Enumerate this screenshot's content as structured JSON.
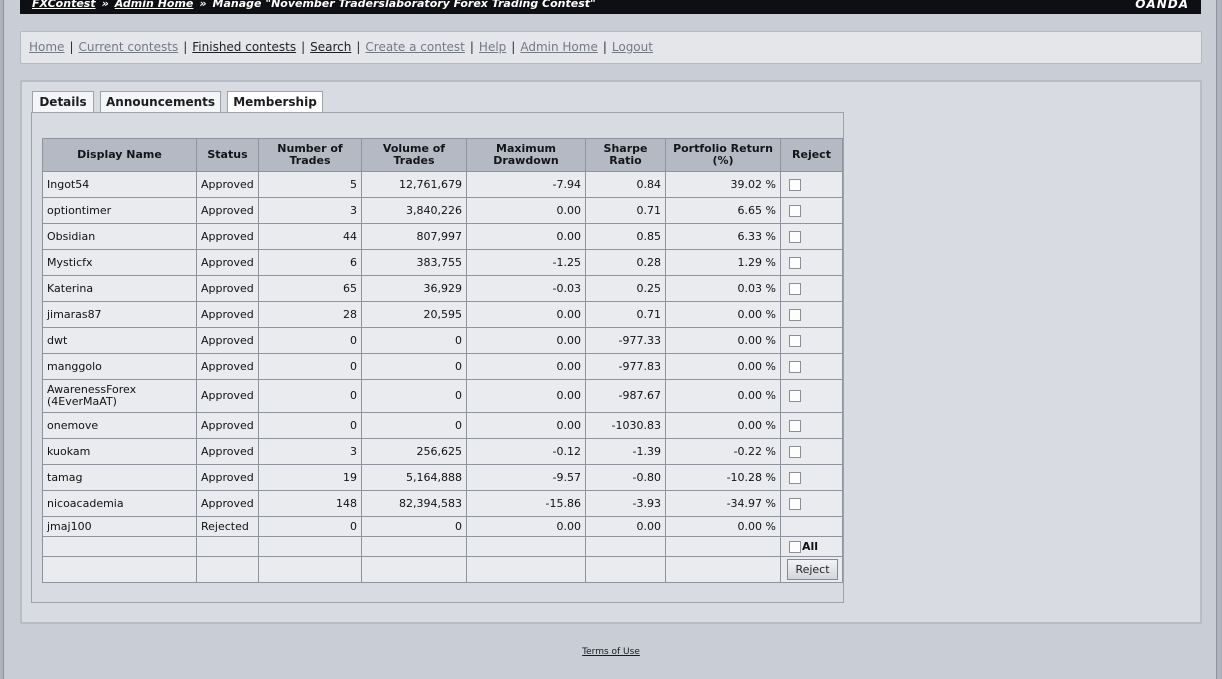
{
  "header": {
    "crumbs": [
      "FXContest",
      "Admin Home"
    ],
    "sep": "»",
    "page_title": "Manage \"November Traderslaboratory Forex Trading Contest\"",
    "brand": "OANDA"
  },
  "nav": {
    "items": [
      "Home",
      "Current contests",
      "Finished contests",
      "Search",
      "Create a contest",
      "Help",
      "Admin Home",
      "Logout"
    ],
    "pipe": "|"
  },
  "tabs": [
    "Details",
    "Announcements",
    "Membership"
  ],
  "table": {
    "headers": [
      "Display Name",
      "Status",
      "Number of Trades",
      "Volume of Trades",
      "Maximum Drawdown",
      "Sharpe Ratio",
      "Portfolio Return (%)",
      "Reject"
    ],
    "rows": [
      {
        "name": "Ingot54",
        "status": "Approved",
        "trades": "5",
        "volume": "12,761,679",
        "drawdown": "-7.94",
        "sharpe": "0.84",
        "ret": "39.02 %"
      },
      {
        "name": "optiontimer",
        "status": "Approved",
        "trades": "3",
        "volume": "3,840,226",
        "drawdown": "0.00",
        "sharpe": "0.71",
        "ret": "6.65 %"
      },
      {
        "name": "Obsidian",
        "status": "Approved",
        "trades": "44",
        "volume": "807,997",
        "drawdown": "0.00",
        "sharpe": "0.85",
        "ret": "6.33 %"
      },
      {
        "name": "Mysticfx",
        "status": "Approved",
        "trades": "6",
        "volume": "383,755",
        "drawdown": "-1.25",
        "sharpe": "0.28",
        "ret": "1.29 %"
      },
      {
        "name": "Katerina",
        "status": "Approved",
        "trades": "65",
        "volume": "36,929",
        "drawdown": "-0.03",
        "sharpe": "0.25",
        "ret": "0.03 %"
      },
      {
        "name": "jimaras87",
        "status": "Approved",
        "trades": "28",
        "volume": "20,595",
        "drawdown": "0.00",
        "sharpe": "0.71",
        "ret": "0.00 %"
      },
      {
        "name": "dwt",
        "status": "Approved",
        "trades": "0",
        "volume": "0",
        "drawdown": "0.00",
        "sharpe": "-977.33",
        "ret": "0.00 %"
      },
      {
        "name": "manggolo",
        "status": "Approved",
        "trades": "0",
        "volume": "0",
        "drawdown": "0.00",
        "sharpe": "-977.83",
        "ret": "0.00 %"
      },
      {
        "name": "AwarenessForex (4EverMaAT)",
        "status": "Approved",
        "trades": "0",
        "volume": "0",
        "drawdown": "0.00",
        "sharpe": "-987.67",
        "ret": "0.00 %"
      },
      {
        "name": "onemove",
        "status": "Approved",
        "trades": "0",
        "volume": "0",
        "drawdown": "0.00",
        "sharpe": "-1030.83",
        "ret": "0.00 %"
      },
      {
        "name": "kuokam",
        "status": "Approved",
        "trades": "3",
        "volume": "256,625",
        "drawdown": "-0.12",
        "sharpe": "-1.39",
        "ret": "-0.22 %"
      },
      {
        "name": "tamag",
        "status": "Approved",
        "trades": "19",
        "volume": "5,164,888",
        "drawdown": "-9.57",
        "sharpe": "-0.80",
        "ret": "-10.28 %"
      },
      {
        "name": "nicoacademia",
        "status": "Approved",
        "trades": "148",
        "volume": "82,394,583",
        "drawdown": "-15.86",
        "sharpe": "-3.93",
        "ret": "-34.97 %"
      },
      {
        "name": "jmaj100",
        "status": "Rejected",
        "trades": "0",
        "volume": "0",
        "drawdown": "0.00",
        "sharpe": "0.00",
        "ret": "0.00 %"
      }
    ],
    "all_label": "All",
    "reject_button": "Reject"
  },
  "footer": {
    "terms": "Terms of Use"
  }
}
